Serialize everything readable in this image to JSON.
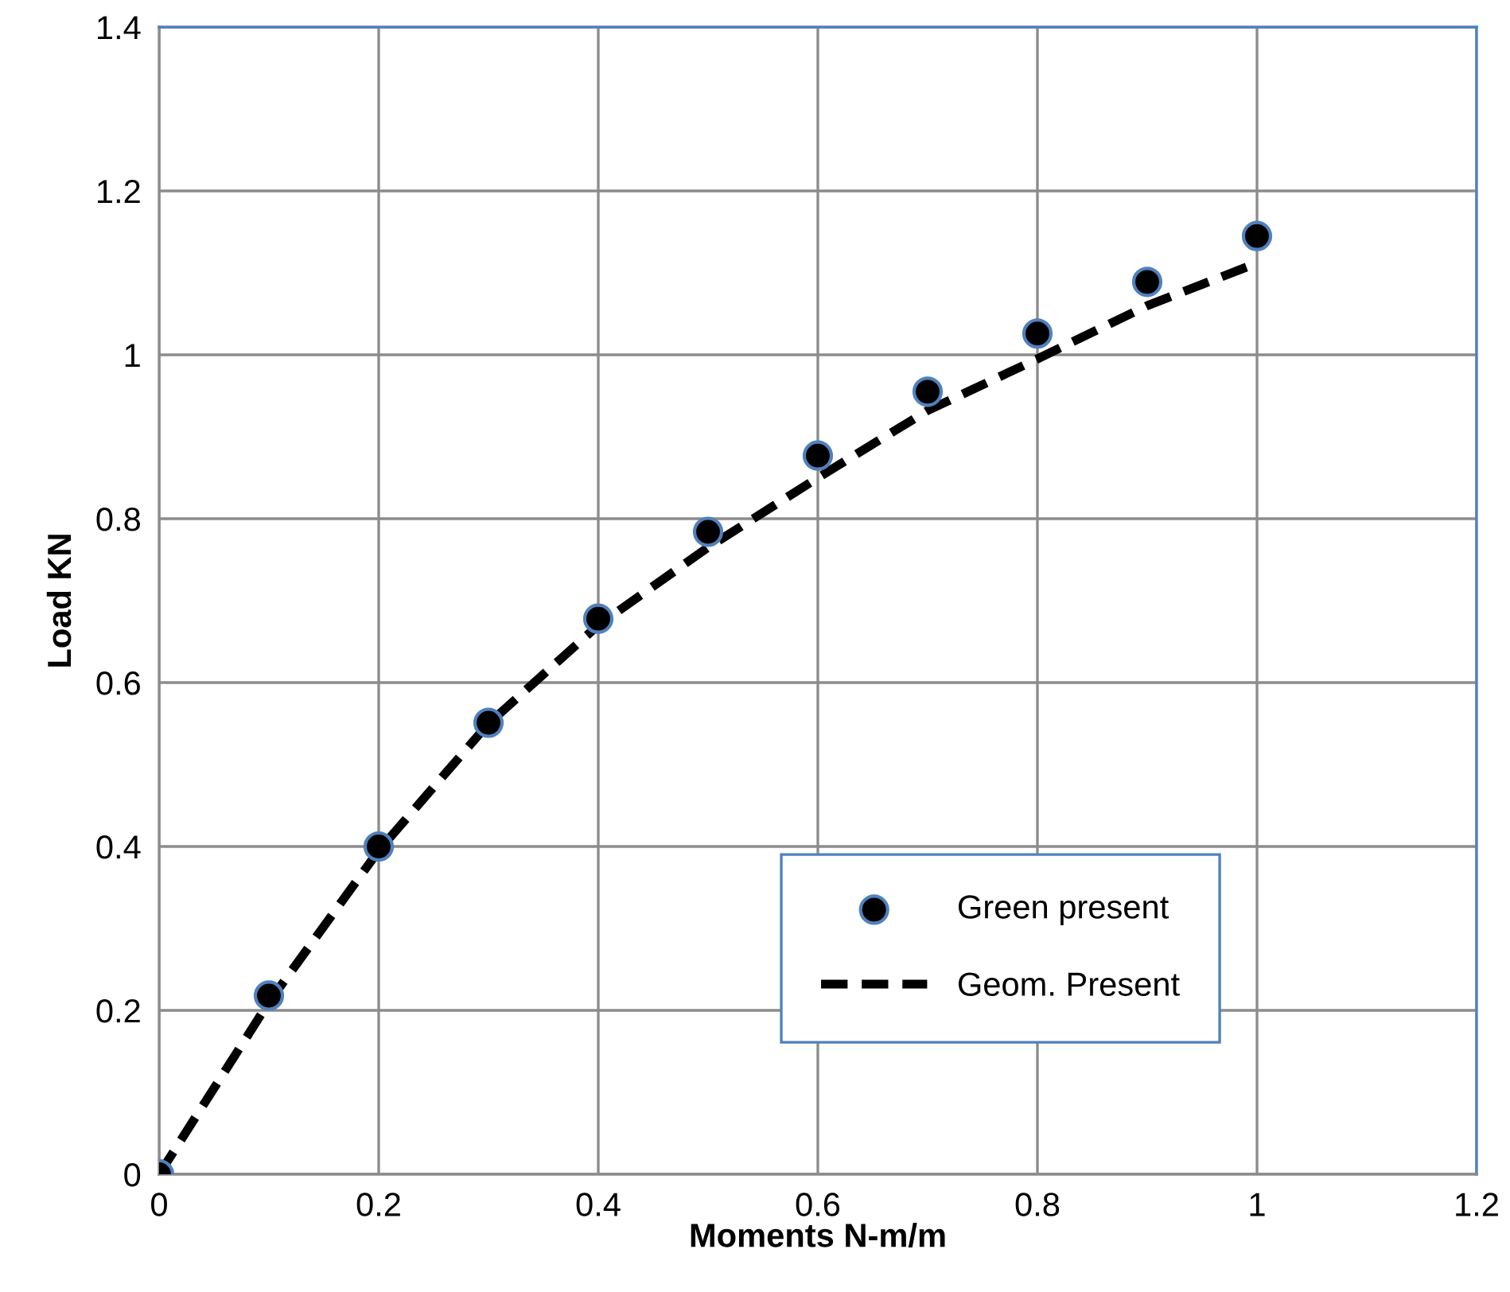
{
  "chart_data": {
    "type": "scatter",
    "xlabel": "Moments N-m/m",
    "ylabel": "Load KN",
    "xlim": [
      0,
      1.2
    ],
    "xticks": [
      0,
      0.2,
      0.4,
      0.6,
      0.8,
      1,
      1.2
    ],
    "ylim": [
      0,
      1.4
    ],
    "yticks": [
      0,
      0.2,
      0.4,
      0.6,
      0.8,
      1,
      1.2,
      1.4
    ],
    "grid": true,
    "legend": "bottom right",
    "series": [
      {
        "name": "Green present",
        "marker": "circle",
        "color": "#000000",
        "x": [
          0,
          0.1,
          0.2,
          0.3,
          0.4,
          0.5,
          0.6,
          0.7,
          0.8,
          0.9,
          1
        ],
        "values": [
          0,
          0.218,
          0.4,
          0.551,
          0.678,
          0.784,
          0.877,
          0.955,
          1.026,
          1.089,
          1.145
        ]
      },
      {
        "name": "Geom. Present",
        "type": "line",
        "line_style": "dashed",
        "color": "#000000",
        "x": [
          0,
          0.1,
          0.2,
          0.3,
          0.4,
          0.5,
          0.6,
          0.7,
          0.8,
          0.9,
          1
        ],
        "values": [
          0,
          0.21,
          0.395,
          0.55,
          0.67,
          0.765,
          0.85,
          0.932,
          0.995,
          1.06,
          1.112
        ]
      }
    ]
  }
}
